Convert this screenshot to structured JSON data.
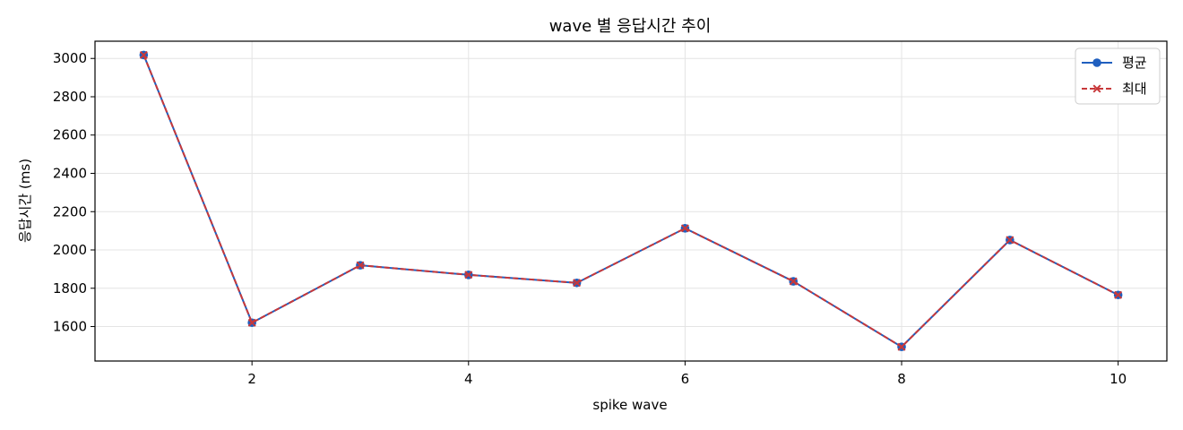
{
  "chart_data": {
    "type": "line",
    "title": "wave 별 응답시간 추이",
    "xlabel": "spike wave",
    "ylabel": "응답시간 (ms)",
    "x": [
      1,
      2,
      3,
      4,
      5,
      6,
      7,
      8,
      9,
      10
    ],
    "series": [
      {
        "name": "평균",
        "values": [
          3018,
          1620,
          1920,
          1870,
          1828,
          2113,
          1836,
          1494,
          2052,
          1765
        ],
        "color": "#1f5fbf",
        "line_style": "solid",
        "marker": "circle"
      },
      {
        "name": "최대",
        "values": [
          3018,
          1620,
          1920,
          1870,
          1828,
          2113,
          1836,
          1494,
          2052,
          1765
        ],
        "color": "#c8383a",
        "line_style": "dashed",
        "marker": "x"
      }
    ],
    "xlim": [
      0.55,
      10.45
    ],
    "ylim": [
      1420,
      3090
    ],
    "x_ticks": [
      2,
      4,
      6,
      8,
      10
    ],
    "y_ticks": [
      1600,
      1800,
      2000,
      2200,
      2400,
      2600,
      2800,
      3000
    ],
    "grid": true,
    "legend_position": "top-right"
  }
}
